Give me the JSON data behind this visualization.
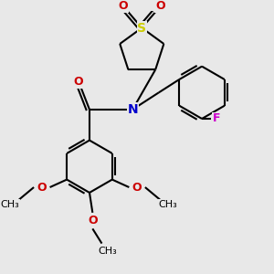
{
  "bg_color": "#e8e8e8",
  "line_color": "#000000",
  "bond_width": 1.5,
  "N_color": "#0000cc",
  "O_color": "#cc0000",
  "S_color": "#cccc00",
  "F_color": "#cc00cc",
  "figsize": [
    3.0,
    3.0
  ],
  "dpi": 100,
  "xlim": [
    -2.5,
    5.5
  ],
  "ylim": [
    -4.0,
    4.5
  ]
}
